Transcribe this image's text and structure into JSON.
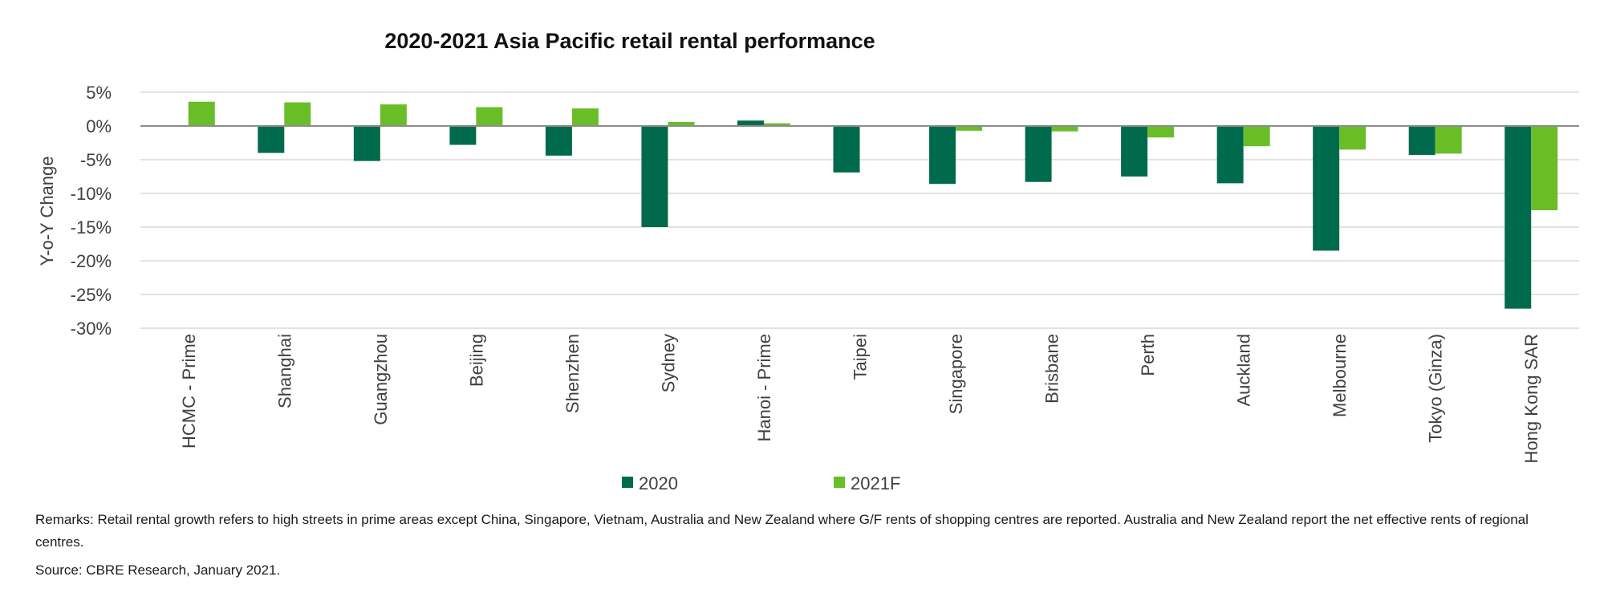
{
  "chart_data": {
    "type": "bar",
    "title": "2020-2021 Asia Pacific retail rental performance",
    "ylabel": "Y-o-Y Change",
    "xlabel": "",
    "ylim": [
      -30,
      5
    ],
    "yticks": [
      "5%",
      "0%",
      "-5%",
      "-10%",
      "-15%",
      "-20%",
      "-25%",
      "-30%"
    ],
    "categories": [
      "HCMC - Prime",
      "Shanghai",
      "Guangzhou",
      "Beijing",
      "Shenzhen",
      "Sydney",
      "Hanoi - Prime",
      "Taipei",
      "Singapore",
      "Brisbane",
      "Perth",
      "Auckland",
      "Melbourne",
      "Tokyo (Ginza)",
      "Hong Kong SAR"
    ],
    "series": [
      {
        "name": "2020",
        "color": "#006A4D",
        "values": [
          0,
          -4.0,
          -5.2,
          -2.8,
          -4.4,
          -15.0,
          0.8,
          -6.9,
          -8.6,
          -8.3,
          -7.5,
          -8.5,
          -18.5,
          -4.3,
          -27.1
        ]
      },
      {
        "name": "2021F",
        "color": "#69BE28",
        "values": [
          3.6,
          3.5,
          3.2,
          2.8,
          2.6,
          0.6,
          0.4,
          0,
          -0.7,
          -0.8,
          -1.7,
          -3.0,
          -3.5,
          -4.1,
          -12.5
        ]
      }
    ],
    "grid": true,
    "legend": "bottom"
  },
  "remarks": "Remarks: Retail rental growth refers to high streets in prime areas except China, Singapore, Vietnam, Australia and New Zealand where G/F rents of shopping centres are reported. Australia and New Zealand report the net effective rents of regional centres.",
  "source": "Source: CBRE Research, January 2021."
}
